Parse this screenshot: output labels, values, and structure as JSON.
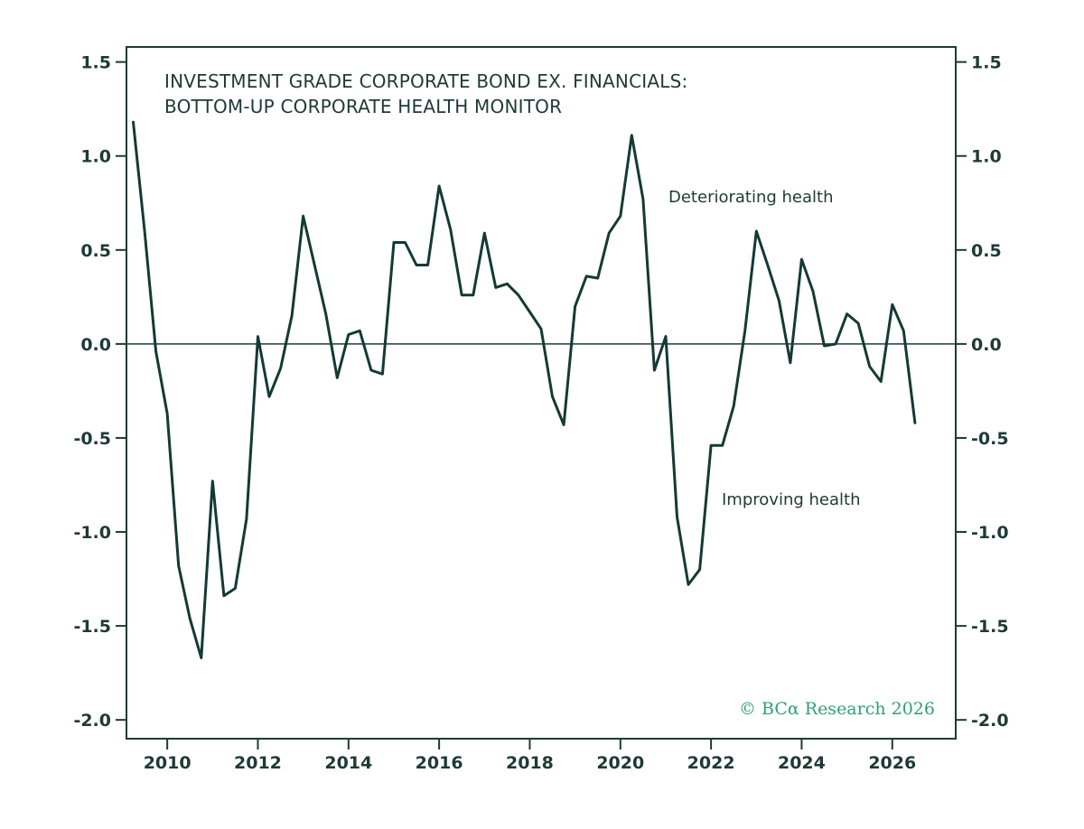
{
  "colors": {
    "axis": "#1f3a36",
    "line": "#143a35",
    "copyright": "#2f9e7a",
    "background": "#ffffff"
  },
  "chart_data": {
    "type": "line",
    "title": "INVESTMENT GRADE CORPORATE BOND EX. FINANCIALS:",
    "subtitle": "BOTTOM-UP CORPORATE HEALTH MONITOR",
    "annotations": {
      "deteriorating": "Deteriorating health",
      "improving": "Improving health"
    },
    "copyright": "© BCα Research 2026",
    "xlim": [
      2009.1,
      2027.4
    ],
    "ylim": [
      -2.1,
      1.58
    ],
    "x_ticks": [
      2010,
      2012,
      2014,
      2016,
      2018,
      2020,
      2022,
      2024,
      2026
    ],
    "x_tick_labels": [
      "2010",
      "2012",
      "2014",
      "2016",
      "2018",
      "2020",
      "2022",
      "2024",
      "2026"
    ],
    "y_ticks": [
      1.5,
      1.0,
      0.5,
      0.0,
      -0.5,
      -1.0,
      -1.5,
      -2.0
    ],
    "y_tick_labels": [
      "1.5",
      "1.0",
      "0.5",
      "0.0",
      "-0.5",
      "-1.0",
      "-1.5",
      "-2.0"
    ],
    "zero_line": 0,
    "grid": false,
    "series": [
      {
        "x": [
          2009.25,
          2009.5,
          2009.75,
          2010.0,
          2010.25,
          2010.5,
          2010.75,
          2011.0,
          2011.25,
          2011.5,
          2011.75,
          2012.0,
          2012.25,
          2012.5,
          2012.75,
          2013.0,
          2013.25,
          2013.5,
          2013.75,
          2014.0,
          2014.25,
          2014.5,
          2014.75,
          2015.0,
          2015.25,
          2015.5,
          2015.75,
          2016.0,
          2016.25,
          2016.5,
          2016.75,
          2017.0,
          2017.25,
          2017.5,
          2017.75,
          2018.0,
          2018.25,
          2018.5,
          2018.75,
          2019.0,
          2019.25,
          2019.5,
          2019.75,
          2020.0,
          2020.25,
          2020.5,
          2020.75,
          2021.0,
          2021.25,
          2021.5,
          2021.75,
          2022.0,
          2022.25,
          2022.5,
          2022.75,
          2023.0,
          2023.25,
          2023.5,
          2023.75,
          2024.0,
          2024.25,
          2024.5,
          2024.75,
          2025.0,
          2025.25,
          2025.5,
          2025.75,
          2026.0,
          2026.25,
          2026.5
        ],
        "values": [
          1.18,
          0.6,
          -0.04,
          -0.37,
          -1.18,
          -1.46,
          -1.67,
          -0.73,
          -1.34,
          -1.3,
          -0.93,
          0.04,
          -0.28,
          -0.13,
          0.15,
          0.68,
          0.42,
          0.16,
          -0.18,
          0.05,
          0.07,
          -0.14,
          -0.16,
          0.54,
          0.54,
          0.42,
          0.42,
          0.84,
          0.61,
          0.26,
          0.26,
          0.59,
          0.3,
          0.32,
          0.26,
          0.17,
          0.08,
          -0.28,
          -0.43,
          0.2,
          0.36,
          0.35,
          0.59,
          0.68,
          1.11,
          0.77,
          -0.14,
          0.04,
          -0.92,
          -1.28,
          -1.2,
          -0.54,
          -0.54,
          -0.33,
          0.07,
          0.6,
          0.42,
          0.23,
          -0.1,
          0.45,
          0.28,
          -0.01,
          0.0,
          0.16,
          0.11,
          -0.12,
          -0.2,
          0.21,
          0.07,
          -0.42
        ]
      }
    ]
  }
}
